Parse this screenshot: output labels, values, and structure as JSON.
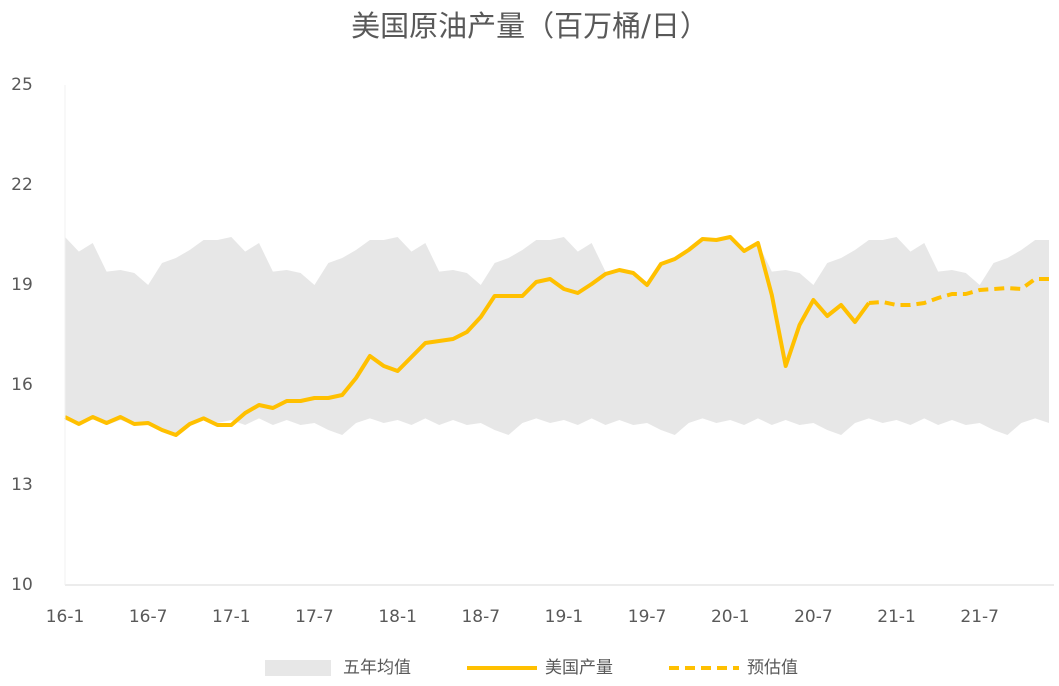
{
  "chart_data": {
    "type": "line",
    "title": "美国原油产量（百万桶/日）",
    "categories": [
      "16-1",
      null,
      null,
      null,
      null,
      null,
      "16-7",
      null,
      null,
      null,
      null,
      null,
      "17-1",
      null,
      null,
      null,
      null,
      null,
      "17-7",
      null,
      null,
      null,
      null,
      null,
      "18-1",
      null,
      null,
      null,
      null,
      null,
      "18-7",
      null,
      null,
      null,
      null,
      null,
      "19-1",
      null,
      null,
      null,
      null,
      null,
      "19-7",
      null,
      null,
      null,
      null,
      null,
      "20-1",
      null,
      null,
      null,
      null,
      null,
      "20-7",
      null,
      null,
      null,
      null,
      null,
      "21-1",
      null,
      null,
      null,
      null,
      null,
      "21-7",
      null,
      null,
      null,
      null,
      null
    ],
    "ylim": [
      10,
      25
    ],
    "yticks": [
      10,
      13,
      16,
      19,
      22,
      25
    ],
    "grid": false,
    "legend": "bottom",
    "series": [
      {
        "name": "五年均值",
        "color": "#e7e7e7",
        "band": true,
        "values": [
          20.44,
          20.0,
          20.26,
          19.4,
          19.45,
          19.36,
          19.0,
          19.66,
          19.81,
          20.05,
          20.35,
          20.35,
          20.44,
          20.0,
          20.26,
          19.4,
          19.45,
          19.36,
          19.0,
          19.66,
          19.81,
          20.05,
          20.35,
          20.35,
          20.44,
          20.0,
          20.26,
          19.4,
          19.45,
          19.36,
          19.0,
          19.66,
          19.81,
          20.05,
          20.35,
          20.35,
          20.44,
          20.0,
          20.26,
          19.4,
          19.45,
          19.36,
          19.0,
          19.66,
          19.81,
          20.05,
          20.35,
          20.35,
          20.44,
          20.0,
          20.26,
          19.4,
          19.45,
          19.36,
          19.0,
          19.66,
          19.81,
          20.05,
          20.35,
          20.35,
          20.44,
          20.0,
          20.26,
          19.4,
          19.45,
          19.36,
          19.0,
          19.66,
          19.81,
          20.05,
          20.35,
          20.35
        ],
        "lower": [
          14.95,
          14.8,
          15.0,
          14.8,
          14.95,
          14.8,
          14.86,
          14.65,
          14.5,
          14.86,
          15.0,
          14.86,
          14.95,
          14.8,
          15.0,
          14.8,
          14.95,
          14.8,
          14.86,
          14.65,
          14.5,
          14.86,
          15.0,
          14.86,
          14.95,
          14.8,
          15.0,
          14.8,
          14.95,
          14.8,
          14.86,
          14.65,
          14.5,
          14.86,
          15.0,
          14.86,
          14.95,
          14.8,
          15.0,
          14.8,
          14.95,
          14.8,
          14.86,
          14.65,
          14.5,
          14.86,
          15.0,
          14.86,
          14.95,
          14.8,
          15.0,
          14.8,
          14.95,
          14.8,
          14.86,
          14.65,
          14.5,
          14.86,
          15.0,
          14.86,
          14.95,
          14.8,
          15.0,
          14.8,
          14.95,
          14.8,
          14.86,
          14.65,
          14.5,
          14.86,
          15.0,
          14.86
        ]
      },
      {
        "name": "美国产量",
        "color": "#ffc000",
        "dashed": false,
        "values": [
          15.04,
          14.83,
          15.04,
          14.86,
          15.04,
          14.83,
          14.86,
          14.65,
          14.5,
          14.83,
          15.0,
          14.8,
          14.8,
          15.16,
          15.4,
          15.31,
          15.52,
          15.52,
          15.61,
          15.61,
          15.7,
          16.21,
          16.87,
          16.57,
          16.42,
          16.84,
          17.26,
          17.32,
          17.38,
          17.59,
          18.04,
          18.67,
          18.67,
          18.67,
          19.09,
          19.18,
          18.88,
          18.76,
          19.03,
          19.33,
          19.45,
          19.36,
          19.0,
          19.63,
          19.78,
          20.05,
          20.38,
          20.35,
          20.44,
          20.02,
          20.26,
          18.7,
          16.57,
          17.8,
          18.55,
          18.07,
          18.4,
          17.89,
          18.46,
          null,
          null,
          null,
          null,
          null,
          null,
          null,
          null,
          null,
          null,
          null,
          null,
          null
        ]
      },
      {
        "name": "预估值",
        "color": "#ffc000",
        "dashed": true,
        "values": [
          null,
          null,
          null,
          null,
          null,
          null,
          null,
          null,
          null,
          null,
          null,
          null,
          null,
          null,
          null,
          null,
          null,
          null,
          null,
          null,
          null,
          null,
          null,
          null,
          null,
          null,
          null,
          null,
          null,
          null,
          null,
          null,
          null,
          null,
          null,
          null,
          null,
          null,
          null,
          null,
          null,
          null,
          null,
          null,
          null,
          null,
          null,
          null,
          null,
          null,
          null,
          null,
          null,
          null,
          null,
          null,
          null,
          null,
          18.46,
          18.49,
          18.4,
          18.4,
          18.46,
          18.61,
          18.73,
          18.73,
          18.85,
          18.88,
          18.91,
          18.88,
          19.18,
          19.18
        ]
      }
    ]
  }
}
